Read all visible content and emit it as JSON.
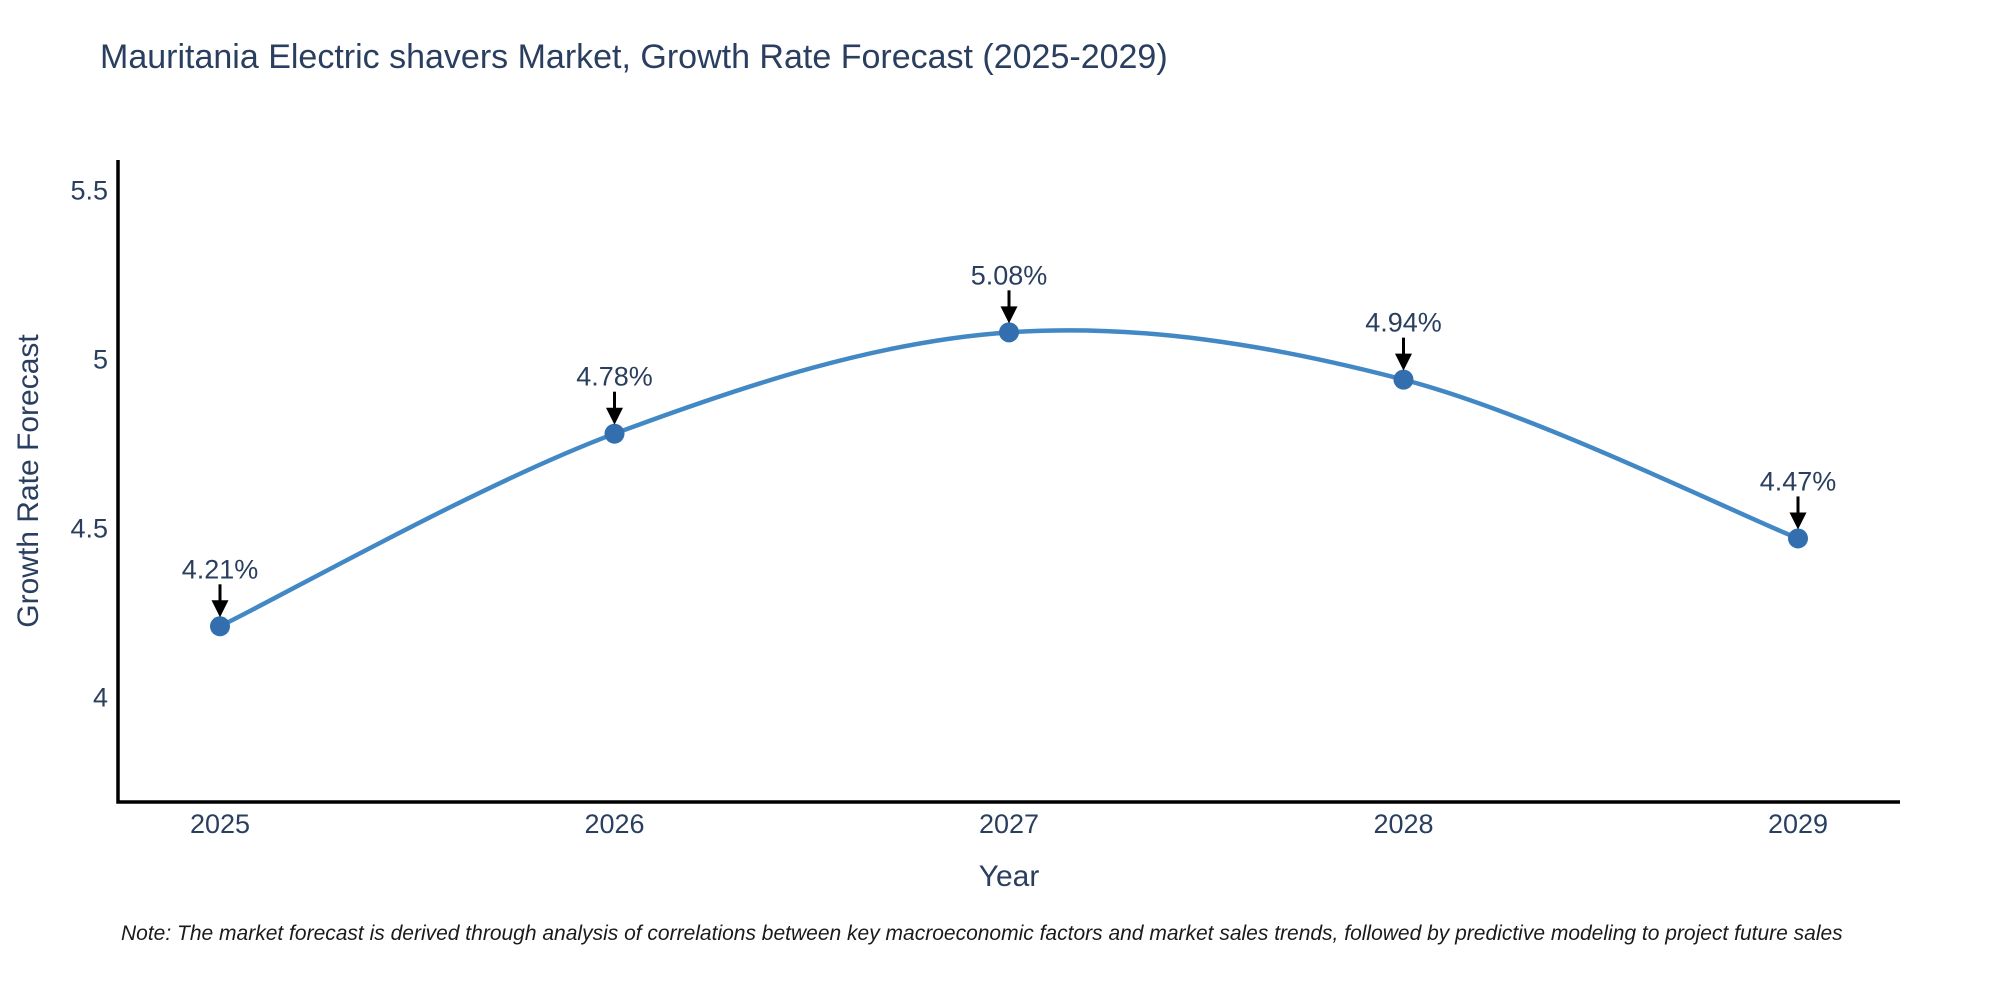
{
  "chart_data": {
    "type": "line",
    "title": "Mauritania Electric shavers Market, Growth Rate Forecast (2025-2029)",
    "xlabel": "Year",
    "ylabel": "Growth Rate Forecast",
    "categories": [
      "2025",
      "2026",
      "2027",
      "2028",
      "2029"
    ],
    "values": [
      4.21,
      4.78,
      5.08,
      4.94,
      4.47
    ],
    "point_labels": [
      "4.21%",
      "4.78%",
      "5.08%",
      "4.94%",
      "4.47%"
    ],
    "y_axis": {
      "ticks": [
        4,
        4.5,
        5,
        5.5
      ],
      "tick_labels": [
        "4",
        "4.5",
        "5",
        "5.5"
      ],
      "range": [
        3.69,
        5.59
      ]
    },
    "line_shape": "spline",
    "grid": false,
    "legend": false,
    "colors": {
      "line": "#4288c5",
      "marker": "#336fae",
      "axis": "#000000",
      "text": "#2a3f5f",
      "arrow": "#000000",
      "note_text": "#1a1a1a"
    },
    "note": "Note: The market forecast is derived through analysis of correlations between key macroeconomic factors and market sales trends, followed by predictive modeling to project future sales"
  }
}
